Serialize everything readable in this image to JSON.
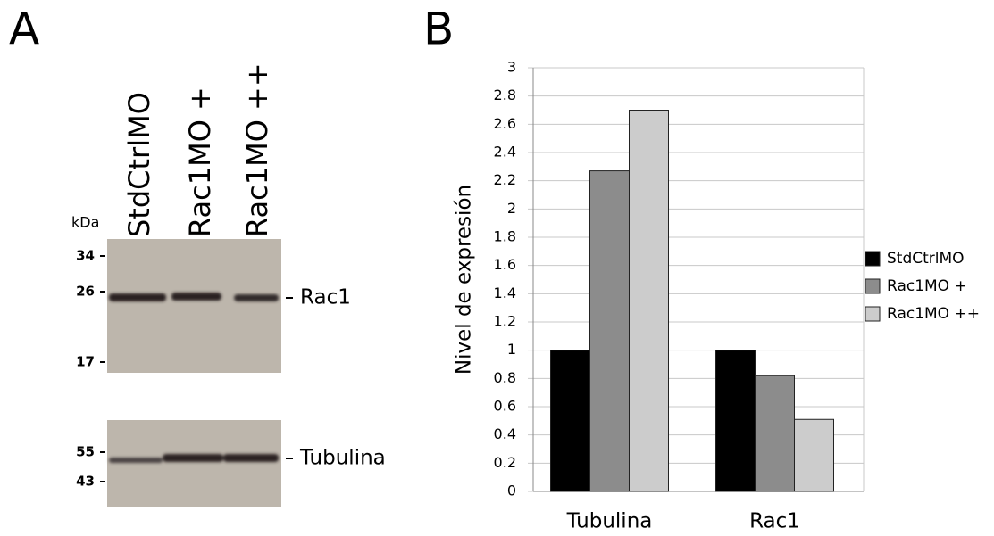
{
  "panel_labels": [
    "A",
    "B"
  ],
  "blot": {
    "lanes": [
      "StdCtrlMO",
      "Rac1MO +",
      "Rac1MO ++"
    ],
    "unit": "kDa",
    "panels": [
      {
        "markers": [
          34,
          26,
          17
        ],
        "band": "Rac1"
      },
      {
        "markers": [
          55,
          43
        ],
        "band": "Tubulina"
      }
    ]
  },
  "chart_data": {
    "type": "bar",
    "ylabel": "Nivel de expresión",
    "categories": [
      "Tubulina",
      "Rac1"
    ],
    "series": [
      {
        "name": "StdCtrlMO",
        "color": "#000000",
        "values": [
          1,
          1
        ]
      },
      {
        "name": "Rac1MO +",
        "color": "#8c8c8c",
        "values": [
          2.27,
          0.82
        ]
      },
      {
        "name": "Rac1MO ++",
        "color": "#cccccc",
        "values": [
          2.7,
          0.51
        ]
      }
    ],
    "ylim": [
      0,
      3
    ],
    "yticks": [
      0,
      0.2,
      0.4,
      0.6,
      0.8,
      1,
      1.2,
      1.4,
      1.6,
      1.8,
      2,
      2.2,
      2.4,
      2.6,
      2.8,
      3
    ],
    "grid": true,
    "legend": "right"
  }
}
